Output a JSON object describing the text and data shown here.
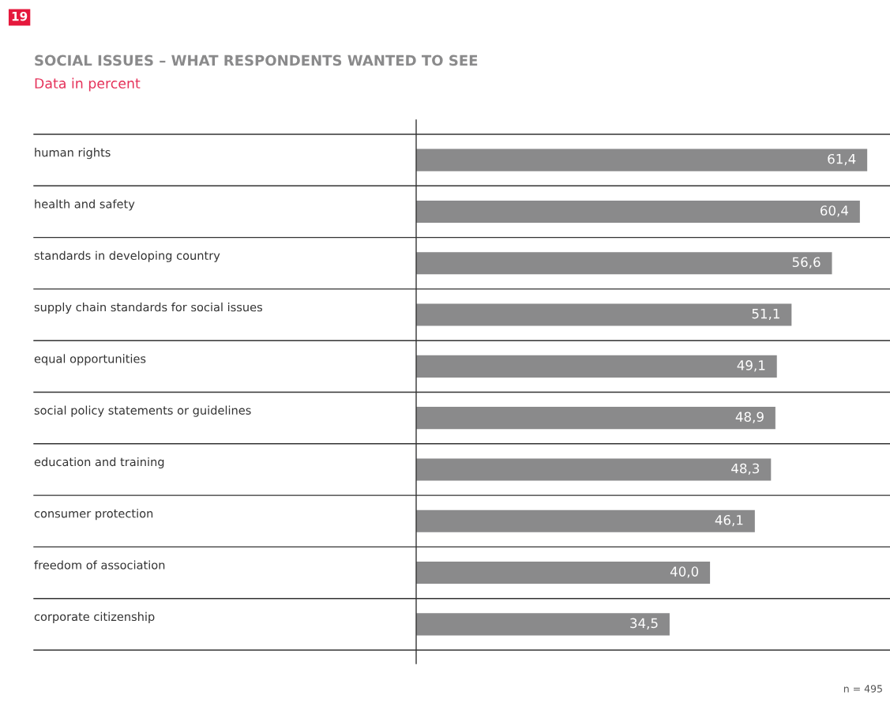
{
  "chart_data": {
    "type": "bar",
    "orientation": "horizontal",
    "title": "SOCIAL ISSUES – WHAT RESPONDENTS WANTED TO SEE",
    "subtitle": "Data in percent",
    "categories": [
      "human rights",
      "health and safety",
      "standards in developing country",
      "supply chain standards for social issues",
      "equal opportunities",
      "social policy statements or guidelines",
      "education and training",
      "consumer protection",
      "freedom of association",
      "corporate citizenship"
    ],
    "values": [
      61.4,
      60.4,
      56.6,
      51.1,
      49.1,
      48.9,
      48.3,
      46.1,
      40.0,
      34.5
    ],
    "value_labels": [
      "61,4",
      "60,4",
      "56,6",
      "51,1",
      "49,1",
      "48,9",
      "48,3",
      "46,1",
      "40,0",
      "34,5"
    ],
    "color": "#8a8a8b",
    "xlim": [
      0,
      64.5
    ],
    "tick_labels": "y",
    "grid": false,
    "legend": false,
    "annotations": [
      "19",
      "n = 495"
    ]
  }
}
